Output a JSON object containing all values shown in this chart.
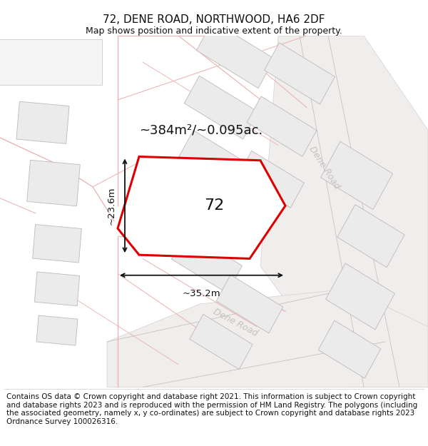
{
  "title": "72, DENE ROAD, NORTHWOOD, HA6 2DF",
  "subtitle": "Map shows position and indicative extent of the property.",
  "footer": "Contains OS data © Crown copyright and database right 2021. This information is subject to Crown copyright and database rights 2023 and is reproduced with the permission of HM Land Registry. The polygons (including the associated geometry, namely x, y co-ordinates) are subject to Crown copyright and database rights 2023 Ordnance Survey 100026316.",
  "area_label": "~384m²/~0.095ac.",
  "property_number": "72",
  "dim_width": "~35.2m",
  "dim_height": "~23.6m",
  "road_label_1": "Dene Road",
  "road_label_2": "Dene Road",
  "map_bg": "#f8f7f7",
  "property_fill": "#ffffff",
  "property_edge": "#dd0000",
  "road_strip_color": "#f0eded",
  "road_line_color": "#e8b0b0",
  "building_fill": "#ebebeb",
  "building_edge": "#c0b8b8",
  "dim_color": "#111111",
  "road_label_color": "#c8c0c0",
  "title_fontsize": 11,
  "subtitle_fontsize": 9,
  "footer_fontsize": 7.5
}
